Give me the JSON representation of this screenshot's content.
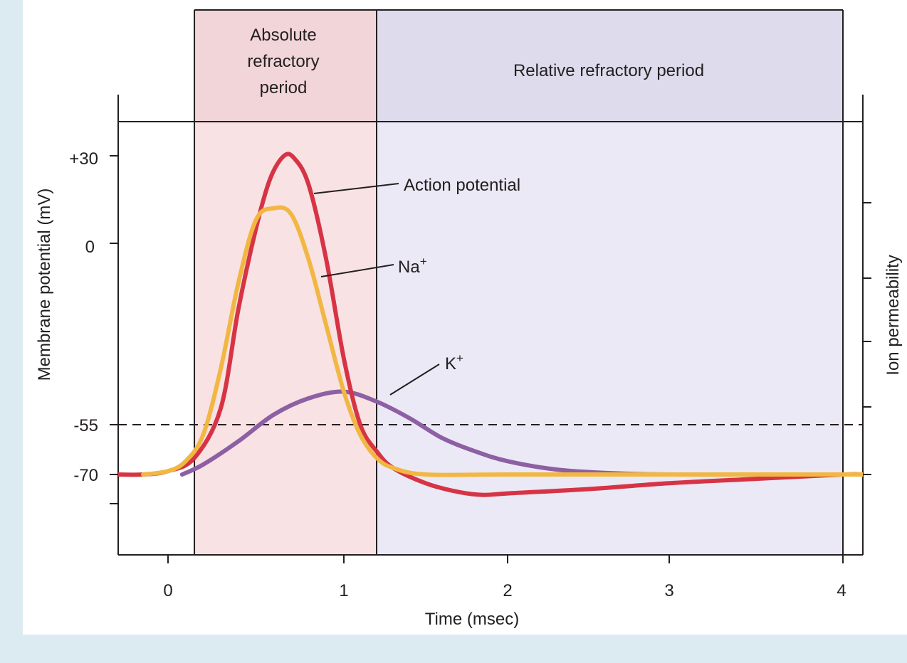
{
  "chart_data": {
    "type": "line",
    "title": "",
    "xlabel": "Time (msec)",
    "ylabel": "Membrane potential (mV)",
    "y2label": "Ion permeability",
    "xlim": [
      -0.3,
      4.1
    ],
    "ylim": [
      -100,
      40
    ],
    "xticks": [
      0,
      1,
      2,
      3,
      4
    ],
    "xtick_labels": [
      "0",
      "1",
      "2",
      "3",
      "4"
    ],
    "yticks": [
      30,
      0,
      -55,
      -70
    ],
    "ytick_labels": [
      "+30",
      "0",
      "-55",
      "-70"
    ],
    "ytick_marks_unlabeled": [
      -80
    ],
    "threshold": {
      "value": -55,
      "style": "dashed"
    },
    "regions": [
      {
        "name": "absolute",
        "label_lines": [
          "Absolute",
          "refractory",
          "period"
        ],
        "x_start": 0.15,
        "x_end": 1.2,
        "color": "#f8e2e4",
        "header_color": "#f2d5d8"
      },
      {
        "name": "relative",
        "label_lines": [
          "Relative refractory period"
        ],
        "x_start": 1.2,
        "x_end": 4.0,
        "color": "#ebe9f5",
        "header_color": "#dddbec"
      }
    ],
    "series": [
      {
        "name": "Action potential",
        "color": "#d63445",
        "points": [
          [
            -0.3,
            -70
          ],
          [
            -0.15,
            -70
          ],
          [
            0.0,
            -69
          ],
          [
            0.15,
            -65
          ],
          [
            0.3,
            -50
          ],
          [
            0.4,
            -20
          ],
          [
            0.5,
            5
          ],
          [
            0.58,
            22
          ],
          [
            0.66,
            30
          ],
          [
            0.72,
            29
          ],
          [
            0.8,
            20
          ],
          [
            0.9,
            -5
          ],
          [
            1.0,
            -35
          ],
          [
            1.1,
            -55
          ],
          [
            1.2,
            -63
          ],
          [
            1.3,
            -68
          ],
          [
            1.5,
            -73
          ],
          [
            1.7,
            -76
          ],
          [
            1.85,
            -77
          ],
          [
            2.0,
            -76.5
          ],
          [
            2.5,
            -75
          ],
          [
            3.0,
            -73
          ],
          [
            3.5,
            -71.5
          ],
          [
            4.0,
            -70
          ],
          [
            4.1,
            -70
          ]
        ]
      },
      {
        "name": "Na+",
        "color": "#f2b743",
        "points": [
          [
            -0.15,
            -70
          ],
          [
            0.0,
            -69
          ],
          [
            0.1,
            -66
          ],
          [
            0.2,
            -58
          ],
          [
            0.3,
            -38
          ],
          [
            0.4,
            -12
          ],
          [
            0.5,
            8
          ],
          [
            0.6,
            12
          ],
          [
            0.7,
            10
          ],
          [
            0.8,
            -5
          ],
          [
            0.9,
            -25
          ],
          [
            1.0,
            -45
          ],
          [
            1.1,
            -58
          ],
          [
            1.2,
            -65
          ],
          [
            1.3,
            -68
          ],
          [
            1.5,
            -70
          ],
          [
            2.0,
            -70
          ],
          [
            3.0,
            -70
          ],
          [
            4.0,
            -70
          ],
          [
            4.1,
            -70
          ]
        ]
      },
      {
        "name": "K+",
        "color": "#8d5fa3",
        "points": [
          [
            0.08,
            -70
          ],
          [
            0.2,
            -67
          ],
          [
            0.4,
            -60
          ],
          [
            0.6,
            -52
          ],
          [
            0.8,
            -47
          ],
          [
            1.0,
            -45
          ],
          [
            1.2,
            -48
          ],
          [
            1.4,
            -53
          ],
          [
            1.6,
            -59
          ],
          [
            1.8,
            -63
          ],
          [
            2.0,
            -66
          ],
          [
            2.3,
            -68.5
          ],
          [
            2.6,
            -69.5
          ],
          [
            3.0,
            -70
          ],
          [
            4.0,
            -70
          ],
          [
            4.1,
            -70
          ]
        ]
      }
    ],
    "annotations": [
      {
        "text": "Action potential",
        "series": "Action potential"
      },
      {
        "text": "Na",
        "sup": "+",
        "series": "Na+"
      },
      {
        "text": "K",
        "sup": "+",
        "series": "K+"
      }
    ]
  }
}
